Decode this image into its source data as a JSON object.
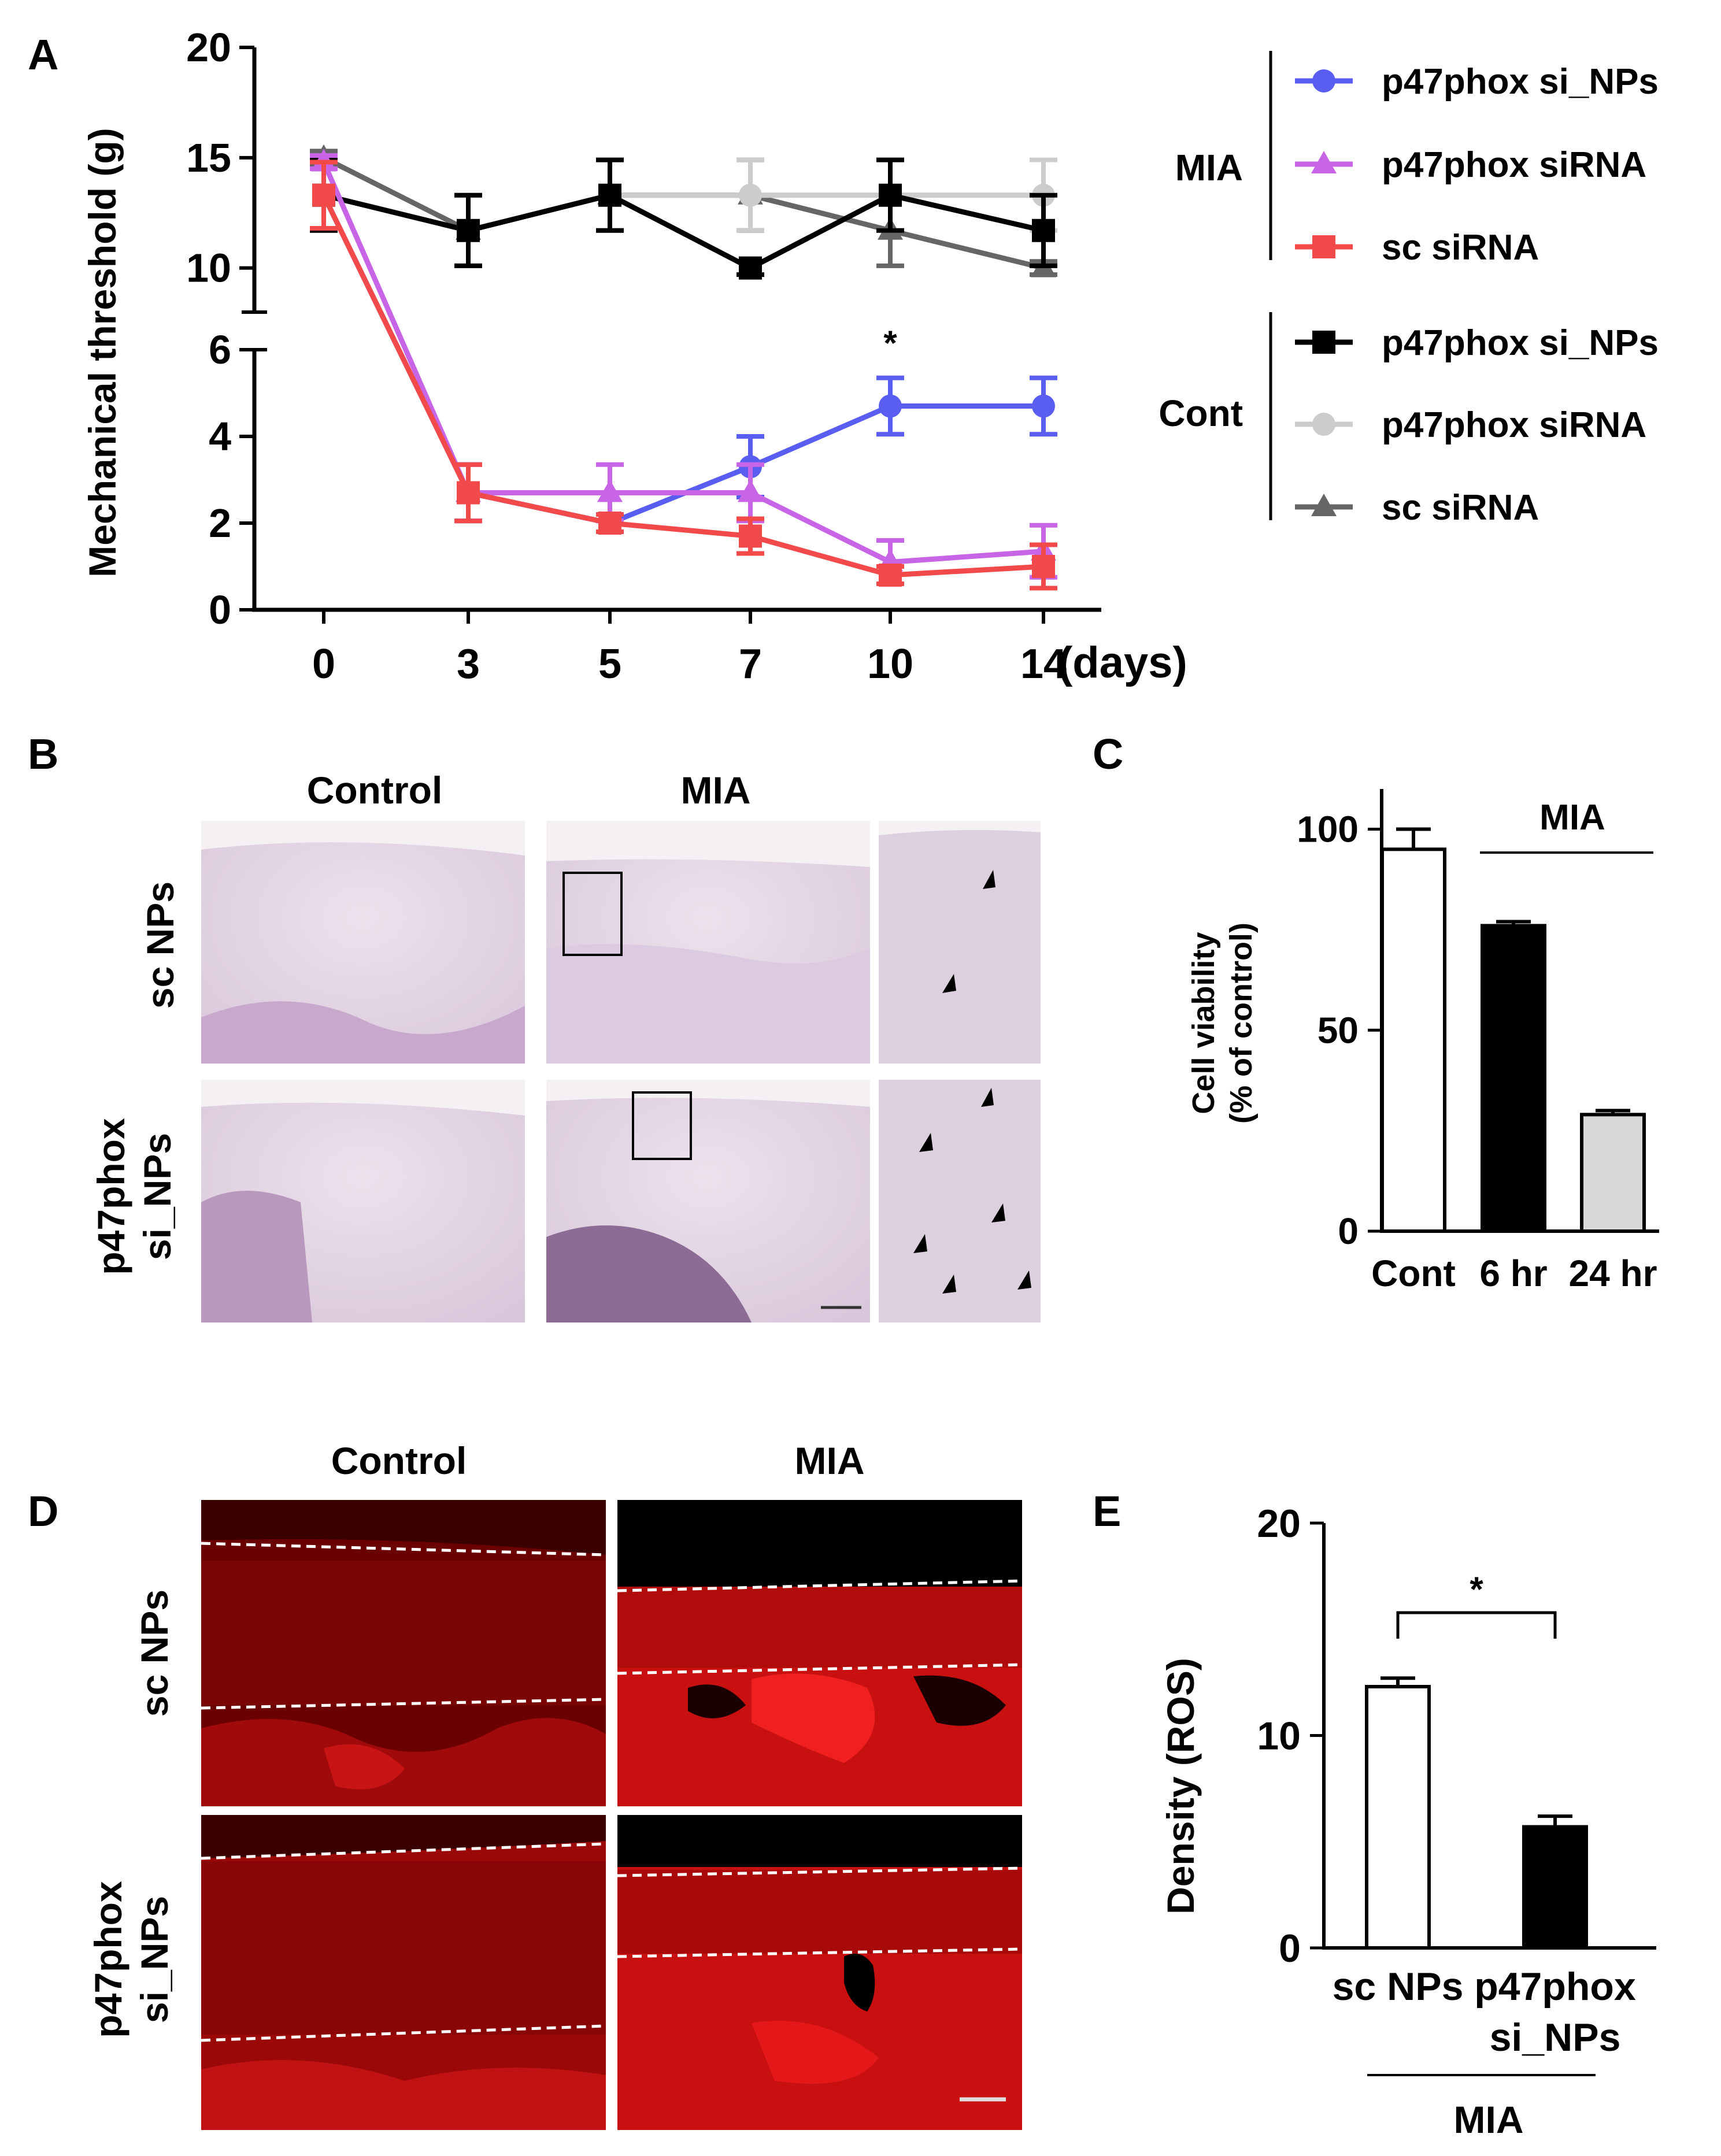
{
  "panel_labels": {
    "A": "A",
    "B": "B",
    "C": "C",
    "D": "D",
    "E": "E"
  },
  "chart_data": [
    {
      "panel": "A",
      "type": "line",
      "ylabel": "Mechanical threshold (g)",
      "x": [
        0,
        3,
        5,
        7,
        10,
        14
      ],
      "x_tick_labels": [
        "0",
        "3",
        "5",
        "7",
        "10",
        "14"
      ],
      "x_unit": "(days)",
      "y_axis_break": true,
      "ylim_upper": [
        8,
        20
      ],
      "ylim_lower": [
        0,
        6
      ],
      "y_ticks_upper": [
        10,
        15,
        20
      ],
      "y_ticks_lower": [
        0,
        2,
        4,
        6
      ],
      "legend_groups": [
        {
          "label": "MIA",
          "entries": [
            "p47phox si_NPs",
            "p47phox siRNA",
            "sc siRNA"
          ]
        },
        {
          "label": "Cont",
          "entries": [
            "p47phox si_NPs",
            "p47phox siRNA",
            "sc siRNA"
          ]
        }
      ],
      "legend_position": "right",
      "series": [
        {
          "name": "p47phox si_NPs",
          "group": "MIA",
          "color": "#5a5ef0",
          "marker": "circle",
          "values": [
            13.3,
            2.7,
            2.0,
            3.3,
            4.7,
            4.7
          ],
          "errors": [
            1.5,
            0.65,
            0.2,
            0.7,
            0.65,
            0.65
          ]
        },
        {
          "name": "p47phox siRNA",
          "group": "MIA",
          "color": "#c864e6",
          "marker": "triangle",
          "values": [
            14.8,
            2.7,
            2.7,
            2.7,
            1.1,
            1.35
          ],
          "errors": [
            0.3,
            0.65,
            0.65,
            0.65,
            0.5,
            0.6
          ]
        },
        {
          "name": "sc siRNA",
          "group": "MIA",
          "color": "#f24a4a",
          "marker": "square",
          "values": [
            13.3,
            2.7,
            2.0,
            1.7,
            0.8,
            1.0
          ],
          "errors": [
            1.5,
            0.65,
            0.2,
            0.4,
            0.2,
            0.5
          ]
        },
        {
          "name": "p47phox si_NPs",
          "group": "Cont",
          "color": "#000000",
          "marker": "square",
          "values": [
            13.3,
            11.7,
            13.3,
            10.0,
            13.3,
            11.7
          ],
          "errors": [
            1.6,
            1.6,
            1.6,
            0.3,
            1.6,
            1.6
          ]
        },
        {
          "name": "p47phox siRNA",
          "group": "Cont",
          "color": "#cccccc",
          "marker": "circle",
          "values": [
            13.3,
            11.7,
            13.3,
            13.3,
            13.3,
            13.3
          ],
          "errors": [
            1.6,
            1.6,
            1.6,
            1.6,
            1.6,
            1.6
          ]
        },
        {
          "name": "sc siRNA",
          "group": "Cont",
          "color": "#666666",
          "marker": "triangle",
          "values": [
            15.0,
            11.7,
            13.3,
            13.3,
            11.7,
            10.0
          ],
          "errors": [
            0.3,
            1.6,
            1.6,
            1.6,
            1.6,
            0.3
          ]
        }
      ],
      "annotations": [
        {
          "text": "*",
          "x": 10
        }
      ]
    },
    {
      "panel": "C",
      "type": "bar",
      "ylabel_line1": "Cell viability",
      "ylabel_line2": "(% of control)",
      "categories": [
        "Cont",
        "6 hr",
        "24 hr"
      ],
      "values": [
        95,
        76,
        29
      ],
      "errors": [
        5,
        1,
        1
      ],
      "colors": [
        "#ffffff",
        "#000000",
        "#d8d8d8"
      ],
      "ylim": [
        0,
        110
      ],
      "y_ticks": [
        0,
        50,
        100
      ],
      "group_label": "MIA"
    },
    {
      "panel": "E",
      "type": "bar",
      "ylabel": "Density (ROS)",
      "categories": [
        "sc NPs",
        "p47phox si_NPs"
      ],
      "category_lines": [
        [
          "sc NPs"
        ],
        [
          "p47phox",
          "si_NPs"
        ]
      ],
      "values": [
        12.3,
        5.7
      ],
      "errors": [
        0.4,
        0.5
      ],
      "colors": [
        "#ffffff",
        "#000000"
      ],
      "ylim": [
        0,
        20
      ],
      "y_ticks": [
        0,
        10,
        20
      ],
      "group_label": "MIA",
      "significance": "*"
    }
  ],
  "panel_b": {
    "col_control": "Control",
    "col_mia": "MIA",
    "row1": "sc NPs",
    "row2_line1": "p47phox",
    "row2_line2": "si_NPs"
  },
  "panel_d": {
    "col_control": "Control",
    "col_mia": "MIA",
    "row1": "sc NPs",
    "row2_line1": "p47phox",
    "row2_line2": "si_NPs"
  }
}
